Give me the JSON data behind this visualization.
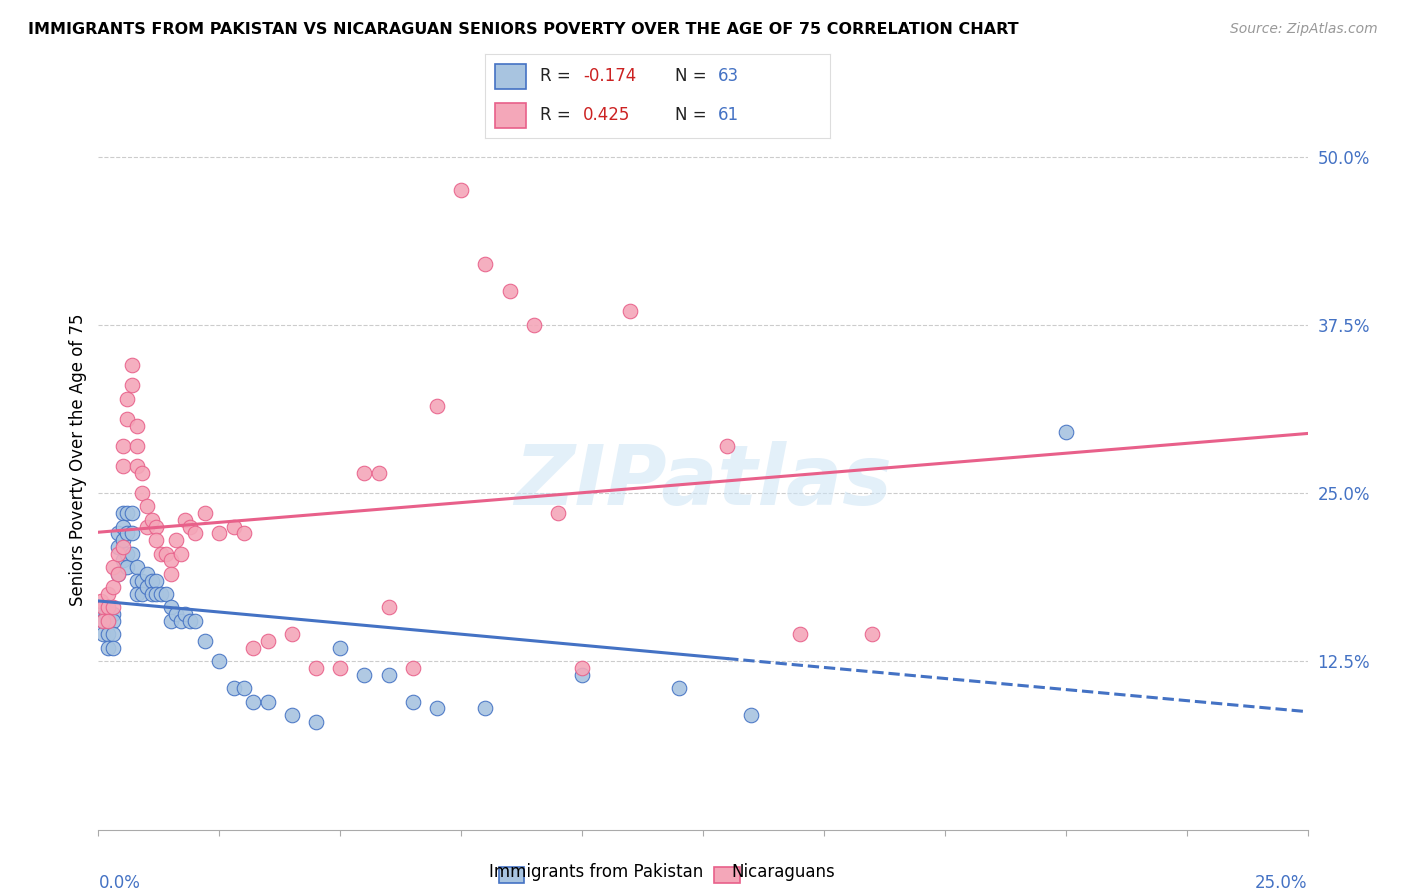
{
  "title": "IMMIGRANTS FROM PAKISTAN VS NICARAGUAN SENIORS POVERTY OVER THE AGE OF 75 CORRELATION CHART",
  "source": "Source: ZipAtlas.com",
  "ylabel": "Seniors Poverty Over the Age of 75",
  "right_ytick_labels": [
    "50.0%",
    "37.5%",
    "25.0%",
    "12.5%"
  ],
  "right_ytick_vals": [
    0.5,
    0.375,
    0.25,
    0.125
  ],
  "x_min": 0.0,
  "x_max": 0.25,
  "y_min": 0.0,
  "y_max": 0.55,
  "color_blue": "#a8c4e0",
  "edge_blue": "#4472c4",
  "color_pink": "#f4a7b9",
  "edge_pink": "#e8608a",
  "line_blue_color": "#4472c4",
  "line_pink_color": "#e8608a",
  "legend_label1": "Immigrants from Pakistan",
  "legend_label2": "Nicaraguans",
  "watermark": "ZIPatlas",
  "blue_x": [
    0.0005,
    0.001,
    0.001,
    0.0015,
    0.002,
    0.002,
    0.002,
    0.003,
    0.003,
    0.003,
    0.003,
    0.004,
    0.004,
    0.004,
    0.005,
    0.005,
    0.005,
    0.005,
    0.006,
    0.006,
    0.006,
    0.006,
    0.007,
    0.007,
    0.007,
    0.008,
    0.008,
    0.008,
    0.009,
    0.009,
    0.01,
    0.01,
    0.011,
    0.011,
    0.012,
    0.012,
    0.013,
    0.014,
    0.015,
    0.015,
    0.016,
    0.017,
    0.018,
    0.019,
    0.02,
    0.022,
    0.025,
    0.028,
    0.03,
    0.032,
    0.035,
    0.04,
    0.045,
    0.05,
    0.055,
    0.06,
    0.065,
    0.07,
    0.08,
    0.1,
    0.12,
    0.135,
    0.2
  ],
  "blue_y": [
    0.16,
    0.155,
    0.145,
    0.16,
    0.155,
    0.145,
    0.135,
    0.16,
    0.155,
    0.145,
    0.135,
    0.22,
    0.21,
    0.19,
    0.235,
    0.225,
    0.215,
    0.2,
    0.235,
    0.22,
    0.205,
    0.195,
    0.235,
    0.22,
    0.205,
    0.195,
    0.185,
    0.175,
    0.185,
    0.175,
    0.19,
    0.18,
    0.185,
    0.175,
    0.185,
    0.175,
    0.175,
    0.175,
    0.165,
    0.155,
    0.16,
    0.155,
    0.16,
    0.155,
    0.155,
    0.14,
    0.125,
    0.105,
    0.105,
    0.095,
    0.095,
    0.085,
    0.08,
    0.135,
    0.115,
    0.115,
    0.095,
    0.09,
    0.09,
    0.115,
    0.105,
    0.085,
    0.295
  ],
  "pink_x": [
    0.0005,
    0.001,
    0.001,
    0.002,
    0.002,
    0.002,
    0.003,
    0.003,
    0.003,
    0.004,
    0.004,
    0.005,
    0.005,
    0.005,
    0.006,
    0.006,
    0.007,
    0.007,
    0.008,
    0.008,
    0.008,
    0.009,
    0.009,
    0.01,
    0.01,
    0.011,
    0.012,
    0.012,
    0.013,
    0.014,
    0.015,
    0.015,
    0.016,
    0.017,
    0.018,
    0.019,
    0.02,
    0.022,
    0.025,
    0.028,
    0.03,
    0.032,
    0.035,
    0.04,
    0.045,
    0.05,
    0.055,
    0.058,
    0.06,
    0.065,
    0.07,
    0.075,
    0.08,
    0.085,
    0.09,
    0.095,
    0.1,
    0.11,
    0.13,
    0.145,
    0.16
  ],
  "pink_y": [
    0.17,
    0.165,
    0.155,
    0.175,
    0.165,
    0.155,
    0.195,
    0.18,
    0.165,
    0.205,
    0.19,
    0.21,
    0.285,
    0.27,
    0.32,
    0.305,
    0.345,
    0.33,
    0.3,
    0.285,
    0.27,
    0.265,
    0.25,
    0.24,
    0.225,
    0.23,
    0.225,
    0.215,
    0.205,
    0.205,
    0.2,
    0.19,
    0.215,
    0.205,
    0.23,
    0.225,
    0.22,
    0.235,
    0.22,
    0.225,
    0.22,
    0.135,
    0.14,
    0.145,
    0.12,
    0.12,
    0.265,
    0.265,
    0.165,
    0.12,
    0.315,
    0.475,
    0.42,
    0.4,
    0.375,
    0.235,
    0.12,
    0.385,
    0.285,
    0.145,
    0.145
  ]
}
